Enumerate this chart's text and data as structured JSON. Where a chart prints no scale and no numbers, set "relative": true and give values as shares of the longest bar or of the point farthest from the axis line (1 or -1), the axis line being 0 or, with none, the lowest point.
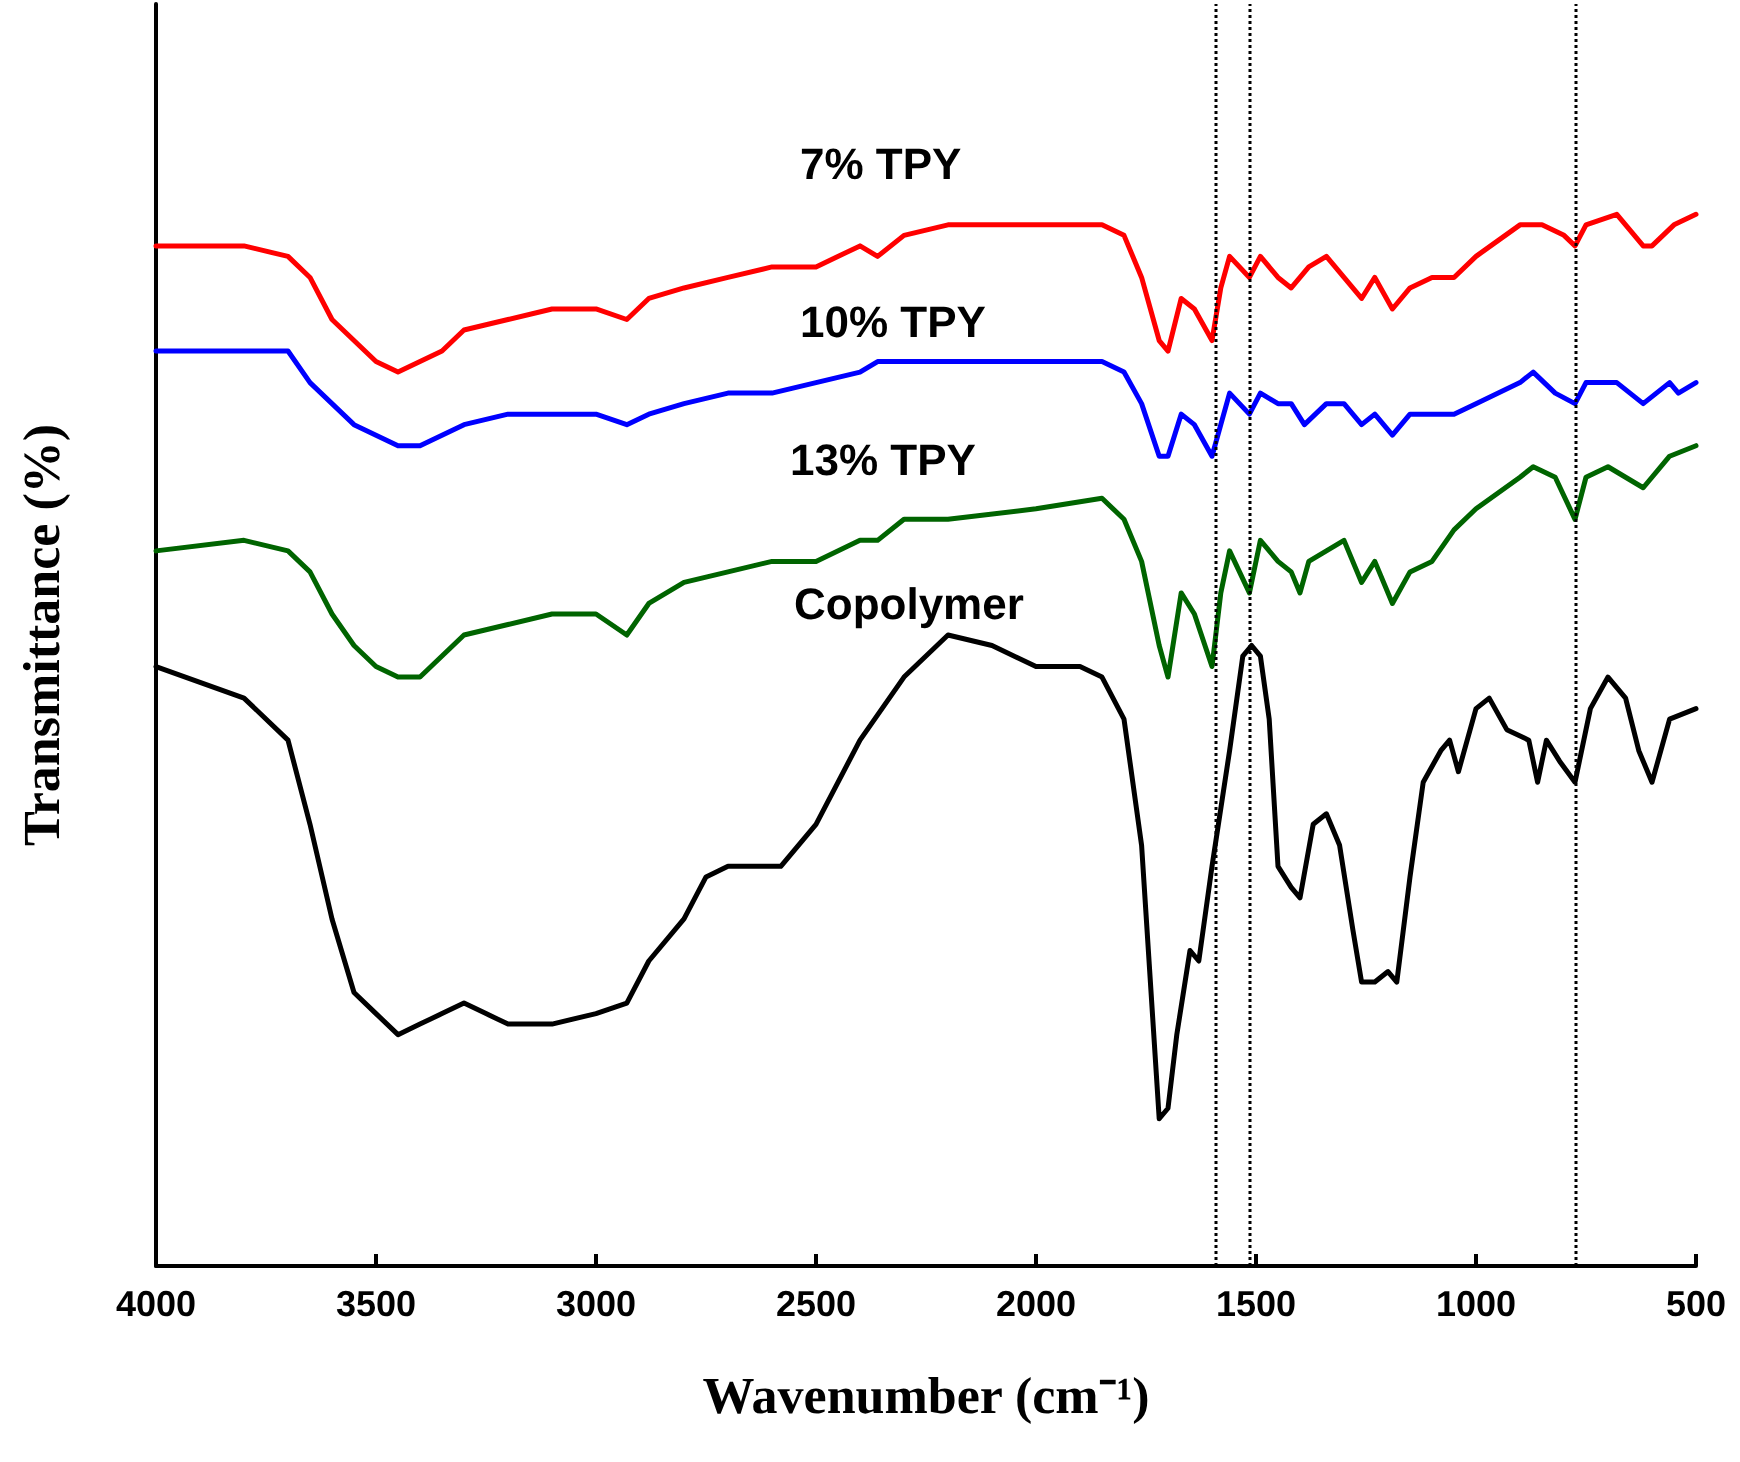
{
  "chart_data": {
    "type": "line",
    "relative": true,
    "xlabel": "Wavenumber (cm⁻¹)",
    "ylabel": "Transmittance (%)",
    "xlim": [
      4000,
      500
    ],
    "xticks": [
      4000,
      3500,
      3000,
      2500,
      2000,
      1500,
      1000,
      500
    ],
    "marker": "none",
    "line_style": "solid",
    "series": [
      {
        "name": "7% TPY",
        "color": "#ff0000",
        "x": [
          4000,
          3800,
          3700,
          3650,
          3600,
          3550,
          3500,
          3450,
          3400,
          3350,
          3300,
          3200,
          3100,
          3000,
          2930,
          2880,
          2800,
          2700,
          2600,
          2500,
          2400,
          2360,
          2300,
          2200,
          2000,
          1850,
          1800,
          1760,
          1720,
          1700,
          1670,
          1640,
          1600,
          1580,
          1560,
          1515,
          1490,
          1450,
          1420,
          1380,
          1340,
          1300,
          1260,
          1230,
          1190,
          1150,
          1100,
          1050,
          1000,
          900,
          850,
          800,
          775,
          750,
          680,
          620,
          600,
          550,
          500
        ],
        "values": [
          0.97,
          0.97,
          0.96,
          0.94,
          0.9,
          0.88,
          0.86,
          0.85,
          0.86,
          0.87,
          0.89,
          0.9,
          0.91,
          0.91,
          0.9,
          0.92,
          0.93,
          0.94,
          0.95,
          0.95,
          0.97,
          0.96,
          0.98,
          0.99,
          0.99,
          0.99,
          0.98,
          0.94,
          0.88,
          0.87,
          0.92,
          0.91,
          0.88,
          0.93,
          0.96,
          0.94,
          0.96,
          0.94,
          0.93,
          0.95,
          0.96,
          0.94,
          0.92,
          0.94,
          0.91,
          0.93,
          0.94,
          0.94,
          0.96,
          0.99,
          0.99,
          0.98,
          0.97,
          0.99,
          1.0,
          0.97,
          0.97,
          0.99,
          1.0
        ]
      },
      {
        "name": "10% TPY",
        "color": "#0000ff",
        "x": [
          4000,
          3800,
          3700,
          3650,
          3600,
          3550,
          3500,
          3450,
          3400,
          3350,
          3300,
          3200,
          3100,
          3000,
          2930,
          2880,
          2800,
          2700,
          2600,
          2500,
          2400,
          2360,
          2300,
          2200,
          2000,
          1850,
          1800,
          1760,
          1720,
          1700,
          1670,
          1640,
          1600,
          1580,
          1560,
          1515,
          1490,
          1450,
          1420,
          1390,
          1340,
          1300,
          1260,
          1230,
          1190,
          1150,
          1100,
          1050,
          1000,
          900,
          870,
          820,
          775,
          750,
          680,
          620,
          560,
          540,
          500
        ],
        "values": [
          0.87,
          0.87,
          0.87,
          0.84,
          0.82,
          0.8,
          0.79,
          0.78,
          0.78,
          0.79,
          0.8,
          0.81,
          0.81,
          0.81,
          0.8,
          0.81,
          0.82,
          0.83,
          0.83,
          0.84,
          0.85,
          0.86,
          0.86,
          0.86,
          0.86,
          0.86,
          0.85,
          0.82,
          0.77,
          0.77,
          0.81,
          0.8,
          0.77,
          0.8,
          0.83,
          0.81,
          0.83,
          0.82,
          0.82,
          0.8,
          0.82,
          0.82,
          0.8,
          0.81,
          0.79,
          0.81,
          0.81,
          0.81,
          0.82,
          0.84,
          0.85,
          0.83,
          0.82,
          0.84,
          0.84,
          0.82,
          0.84,
          0.83,
          0.84
        ]
      },
      {
        "name": "13% TPY",
        "color": "#006400",
        "x": [
          4000,
          3800,
          3700,
          3650,
          3600,
          3550,
          3500,
          3450,
          3400,
          3350,
          3300,
          3200,
          3100,
          3000,
          2930,
          2880,
          2800,
          2700,
          2600,
          2500,
          2400,
          2360,
          2300,
          2200,
          2000,
          1850,
          1800,
          1760,
          1720,
          1700,
          1670,
          1640,
          1600,
          1580,
          1560,
          1515,
          1490,
          1450,
          1420,
          1400,
          1380,
          1340,
          1300,
          1260,
          1230,
          1190,
          1150,
          1100,
          1050,
          1000,
          900,
          870,
          820,
          775,
          750,
          700,
          620,
          560,
          500
        ],
        "values": [
          0.68,
          0.69,
          0.68,
          0.66,
          0.62,
          0.59,
          0.57,
          0.56,
          0.56,
          0.58,
          0.6,
          0.61,
          0.62,
          0.62,
          0.6,
          0.63,
          0.65,
          0.66,
          0.67,
          0.67,
          0.69,
          0.69,
          0.71,
          0.71,
          0.72,
          0.73,
          0.71,
          0.67,
          0.59,
          0.56,
          0.64,
          0.62,
          0.57,
          0.64,
          0.68,
          0.64,
          0.69,
          0.67,
          0.66,
          0.64,
          0.67,
          0.68,
          0.69,
          0.65,
          0.67,
          0.63,
          0.66,
          0.67,
          0.7,
          0.72,
          0.75,
          0.76,
          0.75,
          0.71,
          0.75,
          0.76,
          0.74,
          0.77,
          0.78
        ]
      },
      {
        "name": "Copolymer",
        "color": "#000000",
        "x": [
          4000,
          3800,
          3700,
          3650,
          3600,
          3550,
          3500,
          3450,
          3400,
          3350,
          3300,
          3250,
          3200,
          3100,
          3000,
          2930,
          2880,
          2800,
          2750,
          2700,
          2650,
          2620,
          2580,
          2500,
          2400,
          2300,
          2200,
          2100,
          2000,
          1900,
          1850,
          1800,
          1760,
          1720,
          1700,
          1680,
          1650,
          1630,
          1600,
          1560,
          1530,
          1510,
          1490,
          1470,
          1450,
          1420,
          1400,
          1370,
          1340,
          1310,
          1280,
          1260,
          1230,
          1200,
          1180,
          1150,
          1120,
          1080,
          1060,
          1040,
          1000,
          970,
          930,
          880,
          860,
          840,
          810,
          775,
          740,
          700,
          660,
          630,
          600,
          560,
          500
        ],
        "values": [
          0.57,
          0.54,
          0.5,
          0.42,
          0.33,
          0.26,
          0.24,
          0.22,
          0.23,
          0.24,
          0.25,
          0.24,
          0.23,
          0.23,
          0.24,
          0.25,
          0.29,
          0.33,
          0.37,
          0.38,
          0.38,
          0.38,
          0.38,
          0.42,
          0.5,
          0.56,
          0.6,
          0.59,
          0.57,
          0.57,
          0.56,
          0.52,
          0.4,
          0.14,
          0.15,
          0.22,
          0.3,
          0.29,
          0.38,
          0.49,
          0.58,
          0.59,
          0.58,
          0.52,
          0.38,
          0.36,
          0.35,
          0.42,
          0.43,
          0.4,
          0.32,
          0.27,
          0.27,
          0.28,
          0.27,
          0.37,
          0.46,
          0.49,
          0.5,
          0.47,
          0.53,
          0.54,
          0.51,
          0.5,
          0.46,
          0.5,
          0.48,
          0.46,
          0.53,
          0.56,
          0.54,
          0.49,
          0.46,
          0.52,
          0.53
        ]
      }
    ],
    "ref_lines": [
      {
        "axis": "x",
        "value": 1590,
        "color": "#000000",
        "line_style": "dotted"
      },
      {
        "axis": "x",
        "value": 1515,
        "color": "#000000",
        "line_style": "dotted"
      },
      {
        "axis": "x",
        "value": 775,
        "color": "#000000",
        "line_style": "dotted"
      }
    ]
  }
}
